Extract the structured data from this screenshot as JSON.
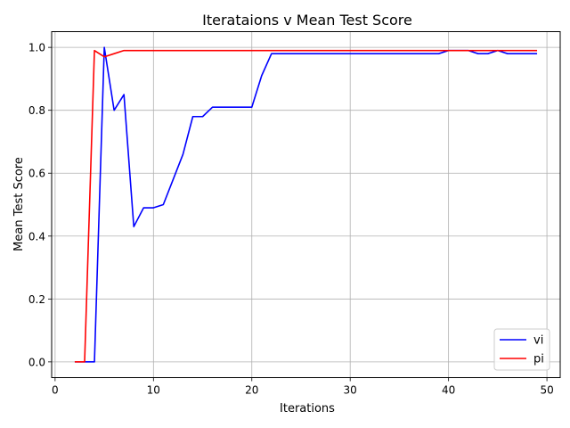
{
  "chart_data": {
    "type": "line",
    "title": "Iterataions v Mean Test Score",
    "xlabel": "Iterations",
    "ylabel": "Mean Test Score",
    "xlim": [
      -0.35,
      51.35
    ],
    "ylim": [
      -0.05,
      1.05
    ],
    "xticks": [
      0,
      10,
      20,
      30,
      40,
      50
    ],
    "yticks": [
      0.0,
      0.2,
      0.4,
      0.6,
      0.8,
      1.0
    ],
    "xtick_labels": [
      "0",
      "10",
      "20",
      "30",
      "40",
      "50"
    ],
    "ytick_labels": [
      "0.0",
      "0.2",
      "0.4",
      "0.6",
      "0.8",
      "1.0"
    ],
    "grid": true,
    "legend_position": "lower-right",
    "x": [
      2,
      3,
      4,
      5,
      6,
      7,
      8,
      9,
      10,
      11,
      12,
      13,
      14,
      15,
      16,
      17,
      18,
      19,
      20,
      21,
      22,
      23,
      24,
      25,
      26,
      27,
      28,
      29,
      30,
      31,
      32,
      33,
      34,
      35,
      36,
      37,
      38,
      39,
      40,
      41,
      42,
      43,
      44,
      45,
      46,
      47,
      48,
      49
    ],
    "series": [
      {
        "name": "vi",
        "color": "#0000ff",
        "values": [
          0,
          0,
          0,
          1.0,
          0.8,
          0.85,
          0.43,
          0.49,
          0.49,
          0.5,
          0.58,
          0.66,
          0.78,
          0.78,
          0.81,
          0.81,
          0.81,
          0.81,
          0.81,
          0.91,
          0.98,
          0.98,
          0.98,
          0.98,
          0.98,
          0.98,
          0.98,
          0.98,
          0.98,
          0.98,
          0.98,
          0.98,
          0.98,
          0.98,
          0.98,
          0.98,
          0.98,
          0.98,
          0.99,
          0.99,
          0.99,
          0.98,
          0.98,
          0.99,
          0.98,
          0.98,
          0.98,
          0.98
        ]
      },
      {
        "name": "pi",
        "color": "#ff0000",
        "values": [
          0,
          0,
          0.99,
          0.97,
          0.98,
          0.99,
          0.99,
          0.99,
          0.99,
          0.99,
          0.99,
          0.99,
          0.99,
          0.99,
          0.99,
          0.99,
          0.99,
          0.99,
          0.99,
          0.99,
          0.99,
          0.99,
          0.99,
          0.99,
          0.99,
          0.99,
          0.99,
          0.99,
          0.99,
          0.99,
          0.99,
          0.99,
          0.99,
          0.99,
          0.99,
          0.99,
          0.99,
          0.99,
          0.99,
          0.99,
          0.99,
          0.99,
          0.99,
          0.99,
          0.99,
          0.99,
          0.99,
          0.99
        ]
      }
    ]
  }
}
